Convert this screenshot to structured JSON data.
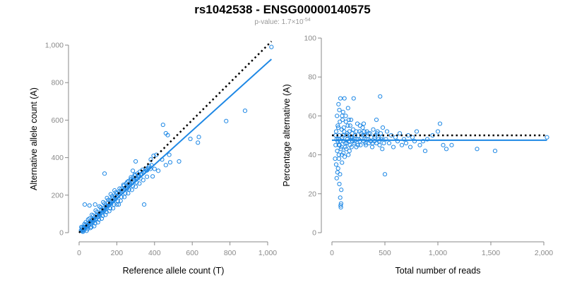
{
  "title": "rs1042538 - ENSG00000140575",
  "subtitle_prefix": "p-value: 1.7×10",
  "subtitle_exp": "-54",
  "colors": {
    "points": "#1e88e5",
    "fit": "#1e88e5",
    "reference": "#000000",
    "axis": "#8a8a8a"
  },
  "chart_data": [
    {
      "type": "scatter",
      "xlabel": "Reference allele count (T)",
      "ylabel": "Alternative allele count (A)",
      "xlim": [
        0,
        1000
      ],
      "ylim": [
        0,
        1000
      ],
      "xticks": [
        0,
        200,
        400,
        600,
        800,
        1000
      ],
      "yticks": [
        0,
        200,
        400,
        600,
        800,
        1000
      ],
      "xtick_labels": [
        "0",
        "200",
        "400",
        "600",
        "800",
        "1,000"
      ],
      "ytick_labels": [
        "0",
        "200",
        "400",
        "600",
        "800",
        "1,000"
      ],
      "fit_line": {
        "x": [
          0,
          1020
        ],
        "y": [
          0,
          925
        ]
      },
      "reference_line": {
        "x": [
          0,
          1020
        ],
        "y": [
          0,
          1020
        ]
      },
      "points": [
        [
          10,
          12
        ],
        [
          14,
          9
        ],
        [
          18,
          20
        ],
        [
          22,
          15
        ],
        [
          26,
          30
        ],
        [
          30,
          22
        ],
        [
          34,
          40
        ],
        [
          38,
          28
        ],
        [
          42,
          35
        ],
        [
          46,
          50
        ],
        [
          50,
          38
        ],
        [
          54,
          45
        ],
        [
          58,
          60
        ],
        [
          62,
          48
        ],
        [
          66,
          55
        ],
        [
          70,
          70
        ],
        [
          74,
          58
        ],
        [
          78,
          65
        ],
        [
          82,
          80
        ],
        [
          86,
          68
        ],
        [
          90,
          75
        ],
        [
          94,
          95
        ],
        [
          98,
          82
        ],
        [
          102,
          88
        ],
        [
          106,
          100
        ],
        [
          110,
          92
        ],
        [
          114,
          105
        ],
        [
          118,
          120
        ],
        [
          122,
          108
        ],
        [
          126,
          115
        ],
        [
          130,
          130
        ],
        [
          134,
          118
        ],
        [
          138,
          125
        ],
        [
          142,
          145
        ],
        [
          146,
          130
        ],
        [
          150,
          140
        ],
        [
          154,
          160
        ],
        [
          158,
          145
        ],
        [
          162,
          150
        ],
        [
          166,
          170
        ],
        [
          170,
          155
        ],
        [
          174,
          165
        ],
        [
          178,
          185
        ],
        [
          182,
          170
        ],
        [
          186,
          178
        ],
        [
          190,
          195
        ],
        [
          194,
          180
        ],
        [
          198,
          190
        ],
        [
          202,
          210
        ],
        [
          206,
          195
        ],
        [
          210,
          205
        ],
        [
          214,
          220
        ],
        [
          218,
          208
        ],
        [
          222,
          215
        ],
        [
          226,
          235
        ],
        [
          230,
          220
        ],
        [
          234,
          228
        ],
        [
          238,
          250
        ],
        [
          242,
          232
        ],
        [
          246,
          240
        ],
        [
          250,
          262
        ],
        [
          254,
          245
        ],
        [
          258,
          252
        ],
        [
          262,
          275
        ],
        [
          266,
          255
        ],
        [
          270,
          262
        ],
        [
          274,
          285
        ],
        [
          278,
          265
        ],
        [
          282,
          272
        ],
        [
          286,
          295
        ],
        [
          290,
          278
        ],
        [
          294,
          285
        ],
        [
          298,
          305
        ],
        [
          302,
          288
        ],
        [
          306,
          292
        ],
        [
          310,
          315
        ],
        [
          314,
          298
        ],
        [
          318,
          305
        ],
        [
          322,
          325
        ],
        [
          326,
          310
        ],
        [
          330,
          312
        ],
        [
          336,
          335
        ],
        [
          342,
          320
        ],
        [
          348,
          328
        ],
        [
          354,
          340
        ],
        [
          360,
          332
        ],
        [
          366,
          345
        ],
        [
          372,
          355
        ],
        [
          378,
          340
        ],
        [
          384,
          360
        ],
        [
          15,
          25
        ],
        [
          25,
          10
        ],
        [
          35,
          55
        ],
        [
          45,
          20
        ],
        [
          55,
          75
        ],
        [
          65,
          30
        ],
        [
          75,
          90
        ],
        [
          85,
          50
        ],
        [
          95,
          110
        ],
        [
          105,
          70
        ],
        [
          115,
          135
        ],
        [
          125,
          90
        ],
        [
          135,
          155
        ],
        [
          145,
          110
        ],
        [
          155,
          175
        ],
        [
          165,
          130
        ],
        [
          175,
          195
        ],
        [
          185,
          150
        ],
        [
          195,
          215
        ],
        [
          205,
          170
        ],
        [
          215,
          235
        ],
        [
          225,
          190
        ],
        [
          235,
          255
        ],
        [
          245,
          210
        ],
        [
          255,
          270
        ],
        [
          265,
          230
        ],
        [
          275,
          295
        ],
        [
          285,
          250
        ],
        [
          295,
          310
        ],
        [
          305,
          268
        ],
        [
          20,
          5
        ],
        [
          40,
          10
        ],
        [
          60,
          25
        ],
        [
          80,
          35
        ],
        [
          100,
          55
        ],
        [
          120,
          75
        ],
        [
          140,
          95
        ],
        [
          160,
          115
        ],
        [
          180,
          130
        ],
        [
          200,
          150
        ],
        [
          220,
          170
        ],
        [
          240,
          190
        ],
        [
          260,
          210
        ],
        [
          280,
          228
        ],
        [
          300,
          245
        ],
        [
          320,
          262
        ],
        [
          340,
          280
        ],
        [
          360,
          298
        ],
        [
          12,
          30
        ],
        [
          28,
          45
        ],
        [
          48,
          70
        ],
        [
          68,
          95
        ],
        [
          88,
          118
        ],
        [
          108,
          140
        ],
        [
          128,
          162
        ],
        [
          148,
          185
        ],
        [
          168,
          205
        ],
        [
          188,
          225
        ],
        [
          30,
          150
        ],
        [
          55,
          145
        ],
        [
          85,
          150
        ],
        [
          135,
          315
        ],
        [
          210,
          150
        ],
        [
          345,
          150
        ],
        [
          395,
          410
        ],
        [
          410,
          415
        ],
        [
          445,
          575
        ],
        [
          460,
          530
        ],
        [
          470,
          520
        ],
        [
          478,
          415
        ],
        [
          483,
          375
        ],
        [
          530,
          380
        ],
        [
          590,
          500
        ],
        [
          630,
          480
        ],
        [
          635,
          510
        ],
        [
          780,
          595
        ],
        [
          880,
          650
        ],
        [
          1020,
          990
        ],
        [
          400,
          340
        ],
        [
          420,
          330
        ],
        [
          440,
          390
        ],
        [
          460,
          360
        ],
        [
          380,
          390
        ],
        [
          390,
          300
        ],
        [
          255,
          235
        ],
        [
          285,
          330
        ],
        [
          300,
          380
        ],
        [
          325,
          290
        ]
      ]
    },
    {
      "type": "scatter",
      "xlabel": "Total number of reads",
      "ylabel": "Percentage alternative (A)",
      "xlim": [
        0,
        2000
      ],
      "ylim": [
        0,
        100
      ],
      "xticks": [
        0,
        500,
        1000,
        1500,
        2000
      ],
      "yticks": [
        0,
        20,
        40,
        60,
        80,
        100
      ],
      "xtick_labels": [
        "0",
        "500",
        "1,000",
        "1,500",
        "2,000"
      ],
      "ytick_labels": [
        "0",
        "20",
        "40",
        "60",
        "80",
        "100"
      ],
      "fit_line": {
        "x": [
          0,
          2030
        ],
        "y": [
          47.5,
          47.5
        ]
      },
      "reference_line": {
        "x": [
          0,
          2030
        ],
        "y": [
          50,
          50
        ]
      },
      "points": [
        [
          30,
          38
        ],
        [
          35,
          45
        ],
        [
          40,
          52
        ],
        [
          45,
          28
        ],
        [
          48,
          60
        ],
        [
          50,
          42
        ],
        [
          55,
          55
        ],
        [
          58,
          33
        ],
        [
          60,
          48
        ],
        [
          62,
          66
        ],
        [
          65,
          40
        ],
        [
          68,
          50
        ],
        [
          70,
          25
        ],
        [
          72,
          45
        ],
        [
          75,
          57
        ],
        [
          78,
          18
        ],
        [
          80,
          47
        ],
        [
          82,
          14
        ],
        [
          84,
          13
        ],
        [
          86,
          15
        ],
        [
          88,
          22
        ],
        [
          90,
          44
        ],
        [
          92,
          53
        ],
        [
          95,
          36
        ],
        [
          98,
          49
        ],
        [
          100,
          58
        ],
        [
          105,
          62
        ],
        [
          108,
          41
        ],
        [
          110,
          47
        ],
        [
          115,
          52
        ],
        [
          120,
          39
        ],
        [
          125,
          46
        ],
        [
          130,
          60
        ],
        [
          135,
          43
        ],
        [
          140,
          50
        ],
        [
          145,
          48
        ],
        [
          150,
          55
        ],
        [
          155,
          40
        ],
        [
          160,
          47
        ],
        [
          165,
          52
        ],
        [
          170,
          45
        ],
        [
          175,
          49
        ],
        [
          180,
          58
        ],
        [
          185,
          44
        ],
        [
          190,
          51
        ],
        [
          195,
          47
        ],
        [
          200,
          53
        ],
        [
          210,
          46
        ],
        [
          220,
          50
        ],
        [
          230,
          44
        ],
        [
          240,
          56
        ],
        [
          250,
          48
        ],
        [
          260,
          52
        ],
        [
          270,
          45
        ],
        [
          280,
          49
        ],
        [
          290,
          54
        ],
        [
          300,
          47
        ],
        [
          310,
          50
        ],
        [
          320,
          45
        ],
        [
          330,
          52
        ],
        [
          340,
          48
        ],
        [
          350,
          46
        ],
        [
          360,
          51
        ],
        [
          370,
          49
        ],
        [
          380,
          44
        ],
        [
          390,
          53
        ],
        [
          400,
          47
        ],
        [
          410,
          50
        ],
        [
          420,
          46
        ],
        [
          430,
          52
        ],
        [
          440,
          48
        ],
        [
          450,
          45
        ],
        [
          460,
          51
        ],
        [
          470,
          49
        ],
        [
          480,
          54
        ],
        [
          490,
          46
        ],
        [
          500,
          30
        ],
        [
          510,
          48
        ],
        [
          520,
          52
        ],
        [
          540,
          46
        ],
        [
          560,
          50
        ],
        [
          580,
          44
        ],
        [
          600,
          49
        ],
        [
          620,
          47
        ],
        [
          640,
          51
        ],
        [
          660,
          45
        ],
        [
          680,
          48
        ],
        [
          700,
          46
        ],
        [
          720,
          50
        ],
        [
          740,
          44
        ],
        [
          760,
          49
        ],
        [
          780,
          47
        ],
        [
          800,
          52
        ],
        [
          830,
          45
        ],
        [
          860,
          47
        ],
        [
          880,
          42
        ],
        [
          900,
          48
        ],
        [
          950,
          50
        ],
        [
          1000,
          52
        ],
        [
          1020,
          56
        ],
        [
          1050,
          45
        ],
        [
          1080,
          43
        ],
        [
          1130,
          45
        ],
        [
          1370,
          43
        ],
        [
          1540,
          42
        ],
        [
          2030,
          49
        ],
        [
          40,
          35
        ],
        [
          52,
          31
        ],
        [
          66,
          38
        ],
        [
          76,
          30
        ],
        [
          94,
          40
        ],
        [
          112,
          54
        ],
        [
          132,
          57
        ],
        [
          152,
          64
        ],
        [
          172,
          55
        ],
        [
          192,
          49
        ],
        [
          60,
          54
        ],
        [
          70,
          63
        ],
        [
          80,
          69
        ],
        [
          96,
          60
        ],
        [
          118,
          69
        ],
        [
          140,
          46
        ],
        [
          160,
          58
        ],
        [
          205,
          69
        ],
        [
          230,
          52
        ],
        [
          245,
          45
        ],
        [
          262,
          47
        ],
        [
          275,
          51
        ],
        [
          290,
          50
        ],
        [
          305,
          52
        ],
        [
          315,
          46
        ],
        [
          325,
          48
        ],
        [
          345,
          51
        ],
        [
          365,
          47
        ],
        [
          385,
          46
        ],
        [
          405,
          49
        ],
        [
          425,
          51
        ],
        [
          445,
          47
        ],
        [
          465,
          48
        ],
        [
          475,
          43
        ],
        [
          455,
          70
        ],
        [
          420,
          58
        ],
        [
          300,
          56
        ],
        [
          265,
          55
        ],
        [
          235,
          48
        ],
        [
          215,
          47
        ],
        [
          105,
          50
        ],
        [
          125,
          44
        ],
        [
          145,
          51
        ],
        [
          165,
          42
        ],
        [
          185,
          49
        ],
        [
          55,
          47
        ],
        [
          65,
          45
        ],
        [
          85,
          43
        ],
        [
          45,
          48
        ],
        [
          35,
          50
        ]
      ]
    }
  ]
}
